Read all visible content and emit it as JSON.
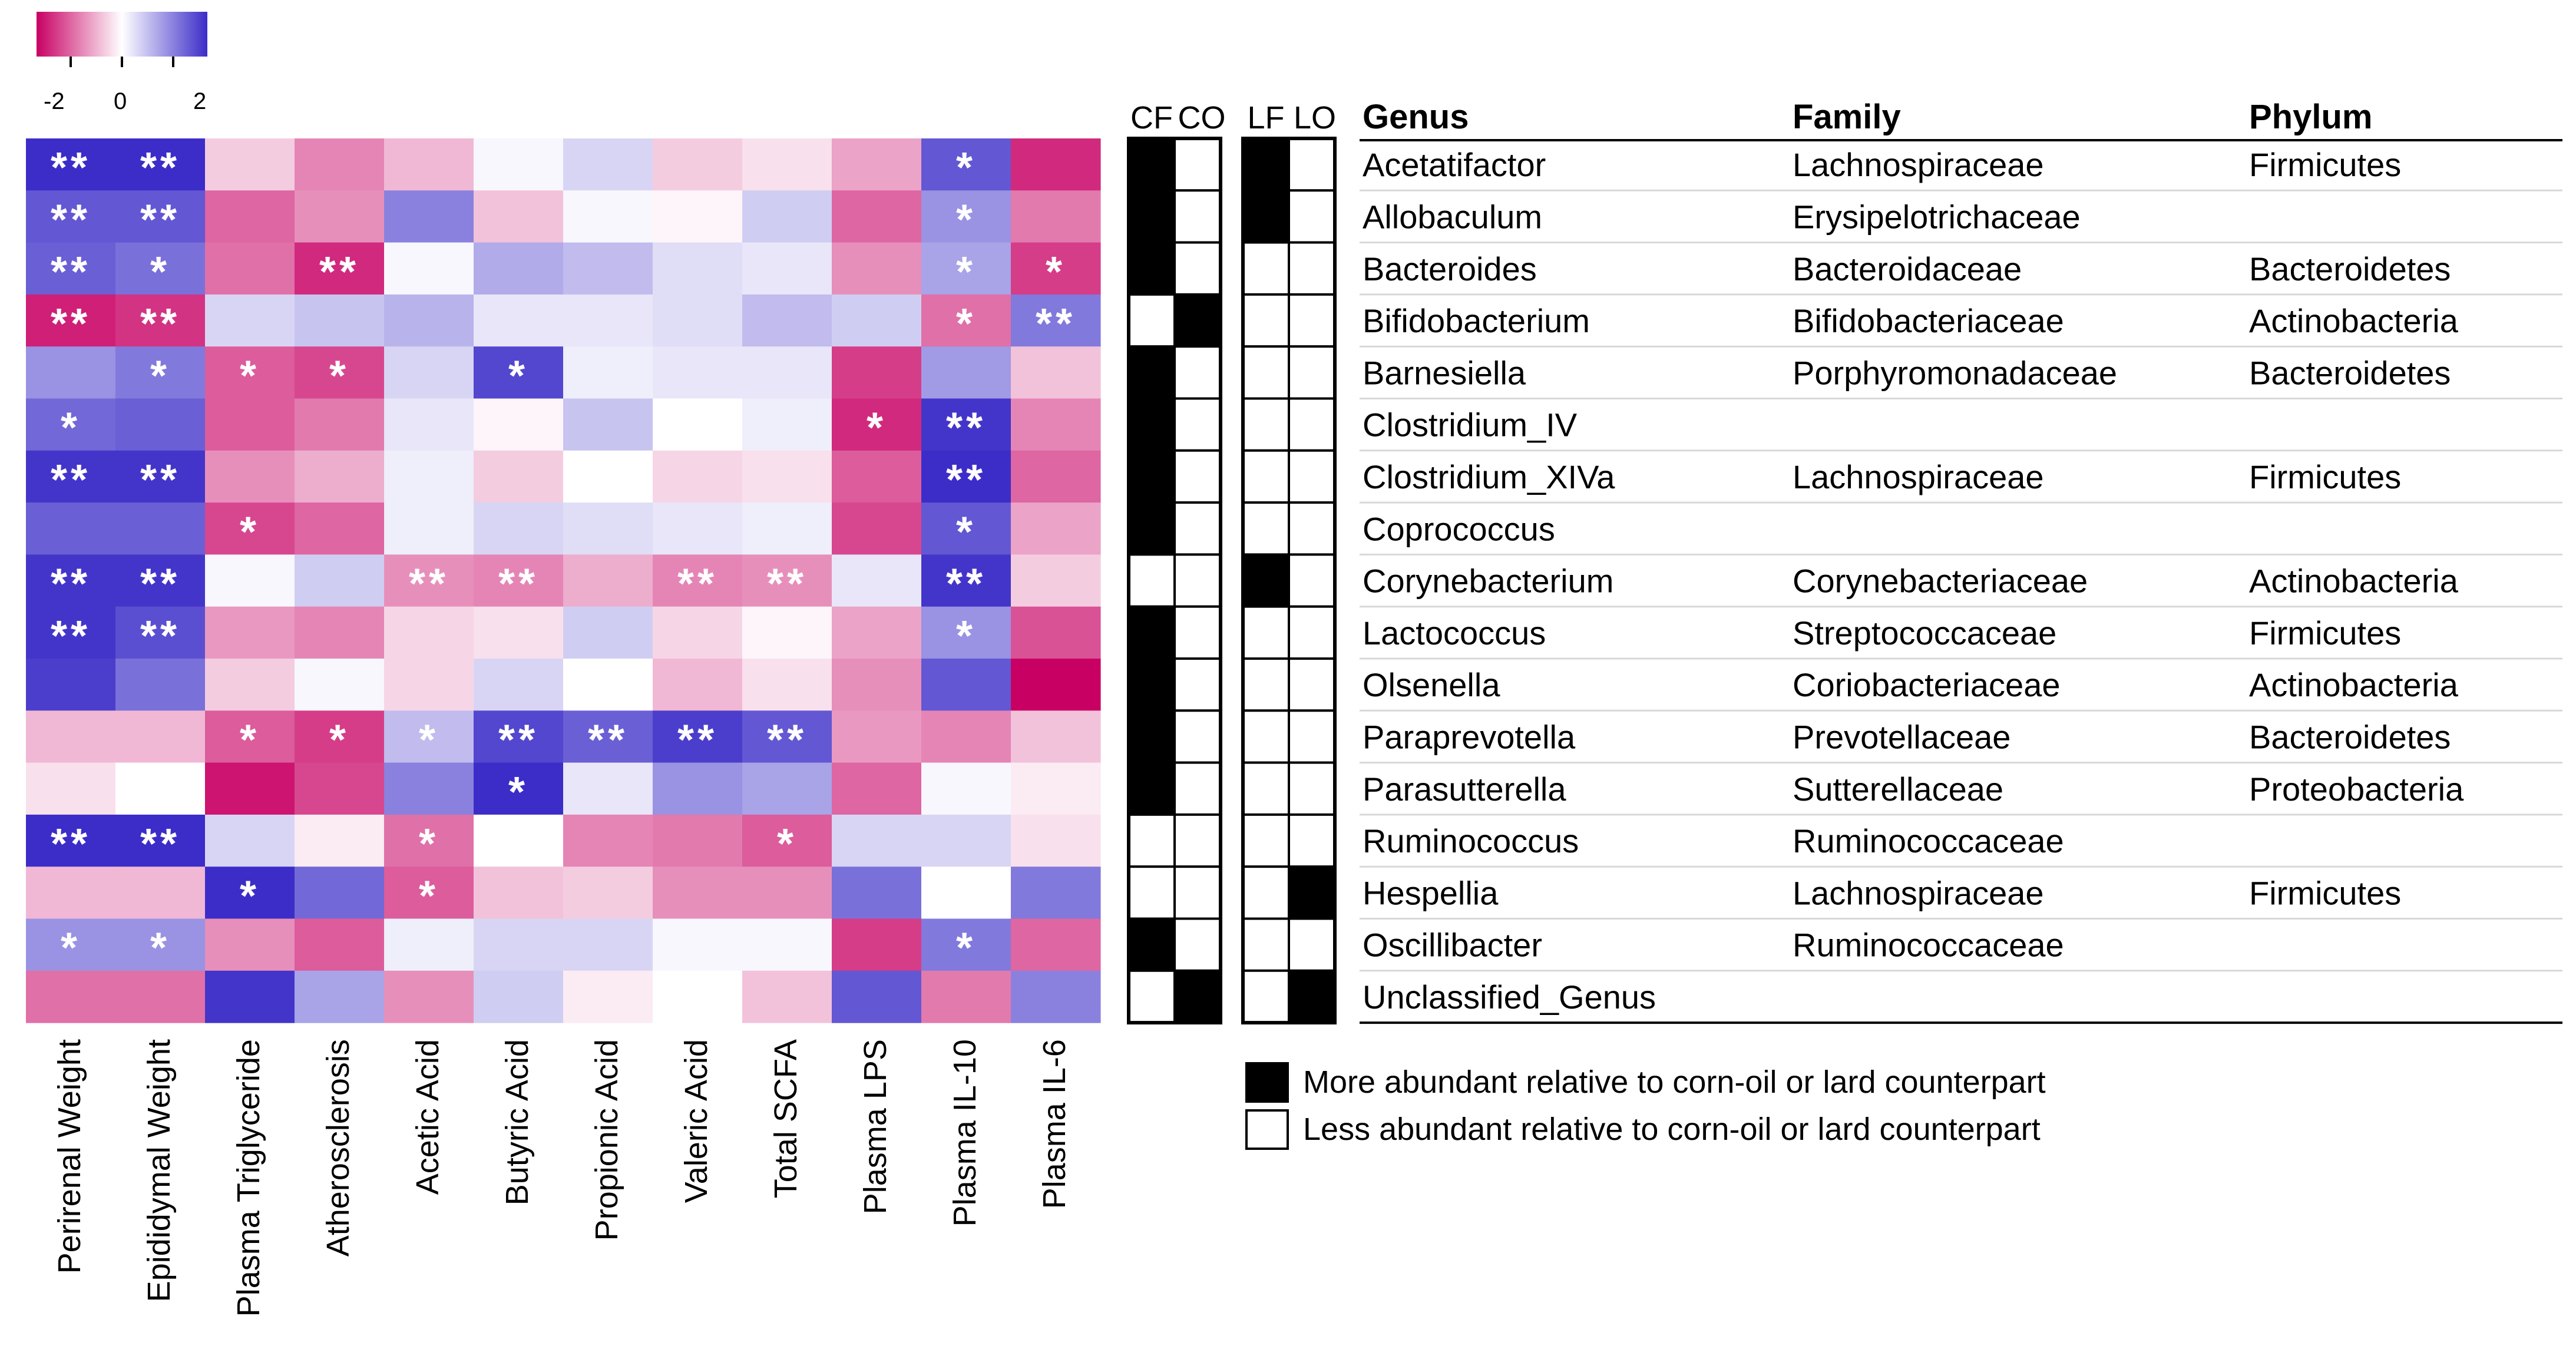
{
  "colors": {
    "low": "#c80064",
    "mid": "#ffffff",
    "high": "#3c2dc8",
    "present": "#000000",
    "absent": "#ffffff",
    "line": "#000000",
    "asterisk": "#ffffff"
  },
  "colorbar": {
    "ticks": [
      "-2",
      "0",
      "2"
    ],
    "range": [
      -2.5,
      2.5
    ]
  },
  "comparison_columns": {
    "group1": [
      "CF",
      "CO"
    ],
    "group2": [
      "LF",
      "LO"
    ]
  },
  "table_headers": {
    "genus": "Genus",
    "family": "Family",
    "phylum": "Phylum"
  },
  "taxa": [
    {
      "genus": "Acetatifactor",
      "family": "Lachnospiraceae",
      "phylum": "Firmicutes"
    },
    {
      "genus": "Allobaculum",
      "family": "Erysipelotrichaceae",
      "phylum": ""
    },
    {
      "genus": "Bacteroides",
      "family": "Bacteroidaceae",
      "phylum": "Bacteroidetes"
    },
    {
      "genus": "Bifidobacterium",
      "family": "Bifidobacteriaceae",
      "phylum": "Actinobacteria"
    },
    {
      "genus": "Barnesiella",
      "family": "Porphyromonadaceae",
      "phylum": "Bacteroidetes"
    },
    {
      "genus": "Clostridium_IV",
      "family": "",
      "phylum": ""
    },
    {
      "genus": "Clostridium_XIVa",
      "family": "Lachnospiraceae",
      "phylum": "Firmicutes"
    },
    {
      "genus": "Coprococcus",
      "family": "",
      "phylum": ""
    },
    {
      "genus": "Corynebacterium",
      "family": "Corynebacteriaceae",
      "phylum": "Actinobacteria"
    },
    {
      "genus": "Lactococcus",
      "family": "Streptococcaceae",
      "phylum": "Firmicutes"
    },
    {
      "genus": "Olsenella",
      "family": "Coriobacteriaceae",
      "phylum": "Actinobacteria"
    },
    {
      "genus": "Paraprevotella",
      "family": "Prevotellaceae",
      "phylum": "Bacteroidetes"
    },
    {
      "genus": "Parasutterella",
      "family": "Sutterellaceae",
      "phylum": "Proteobacteria"
    },
    {
      "genus": "Ruminococcus",
      "family": "Ruminococcaceae",
      "phylum": ""
    },
    {
      "genus": "Hespellia",
      "family": "Lachnospiraceae",
      "phylum": "Firmicutes"
    },
    {
      "genus": "Oscillibacter",
      "family": "Ruminococcaceae",
      "phylum": ""
    },
    {
      "genus": "Unclassified_Genus",
      "family": "",
      "phylum": ""
    }
  ],
  "abundance": {
    "CF_CO": [
      [
        1,
        0
      ],
      [
        1,
        0
      ],
      [
        1,
        0
      ],
      [
        0,
        1
      ],
      [
        1,
        0
      ],
      [
        1,
        0
      ],
      [
        1,
        0
      ],
      [
        1,
        0
      ],
      [
        0,
        0
      ],
      [
        1,
        0
      ],
      [
        1,
        0
      ],
      [
        1,
        0
      ],
      [
        1,
        0
      ],
      [
        0,
        0
      ],
      [
        0,
        0
      ],
      [
        1,
        0
      ],
      [
        0,
        1
      ]
    ],
    "LF_LO": [
      [
        1,
        0
      ],
      [
        1,
        0
      ],
      [
        0,
        0
      ],
      [
        0,
        0
      ],
      [
        0,
        0
      ],
      [
        0,
        0
      ],
      [
        0,
        0
      ],
      [
        0,
        0
      ],
      [
        1,
        0
      ],
      [
        0,
        0
      ],
      [
        0,
        0
      ],
      [
        0,
        0
      ],
      [
        0,
        0
      ],
      [
        0,
        0
      ],
      [
        0,
        1
      ],
      [
        0,
        0
      ],
      [
        0,
        1
      ]
    ]
  },
  "legend": {
    "more": "More abundant relative to corn-oil or lard counterpart",
    "less": "Less abundant relative to corn-oil or lard counterpart"
  },
  "chart_data": {
    "type": "heatmap",
    "title": "",
    "xlabel": "",
    "ylabel": "",
    "color_scale_range": [
      -2.5,
      2.5
    ],
    "columns": [
      "Perirenal Weight",
      "Epididymal Weight",
      "Plasma Triglyceride",
      "Atherosclerosis",
      "Acetic Acid",
      "Butyric Acid",
      "Propionic Acid",
      "Valeric Acid",
      "Total SCFA",
      "Plasma LPS",
      "Plasma IL-10",
      "Plasma IL-6"
    ],
    "rows": [
      "Acetatifactor",
      "Allobaculum",
      "Bacteroides",
      "Bifidobacterium",
      "Barnesiella",
      "Clostridium_IV",
      "Clostridium_XIVa",
      "Coprococcus",
      "Corynebacterium",
      "Lactococcus",
      "Olsenella",
      "Paraprevotella",
      "Parasutterella",
      "Ruminococcus",
      "Hespellia",
      "Oscillibacter",
      "Unclassified_Genus"
    ],
    "values": [
      [
        2.5,
        2.5,
        -0.5,
        -1.2,
        -0.7,
        0.1,
        0.5,
        -0.5,
        -0.3,
        -0.9,
        2.0,
        -2.1
      ],
      [
        2.0,
        2.0,
        -1.5,
        -1.1,
        1.5,
        -0.6,
        0.1,
        -0.1,
        0.6,
        -1.5,
        1.3,
        -1.3
      ],
      [
        1.9,
        1.7,
        -1.4,
        -2.1,
        0.1,
        1.0,
        0.8,
        0.4,
        0.3,
        -1.1,
        1.1,
        -1.9
      ],
      [
        -2.2,
        -2.0,
        0.5,
        0.7,
        0.9,
        0.3,
        0.3,
        0.4,
        0.8,
        0.6,
        -1.4,
        1.6
      ],
      [
        1.3,
        1.6,
        -1.6,
        -1.8,
        0.5,
        2.2,
        0.2,
        0.3,
        0.3,
        -1.9,
        1.2,
        -0.6
      ],
      [
        1.8,
        1.9,
        -1.6,
        -1.3,
        0.3,
        -0.1,
        0.7,
        0.0,
        0.2,
        -2.1,
        2.4,
        -1.2
      ],
      [
        2.4,
        2.4,
        -1.1,
        -0.8,
        0.2,
        -0.5,
        0.0,
        -0.4,
        -0.3,
        -1.6,
        2.5,
        -1.5
      ],
      [
        1.9,
        1.9,
        -1.8,
        -1.5,
        0.2,
        0.5,
        0.4,
        0.3,
        0.2,
        -1.8,
        2.0,
        -0.9
      ],
      [
        2.4,
        2.4,
        0.1,
        0.6,
        -1.1,
        -1.2,
        -0.8,
        -1.2,
        -1.1,
        0.3,
        2.4,
        -0.5
      ],
      [
        2.4,
        2.1,
        -1.0,
        -1.2,
        -0.4,
        -0.3,
        0.6,
        -0.4,
        -0.1,
        -0.9,
        1.3,
        -1.7
      ],
      [
        2.3,
        1.7,
        -0.5,
        0.1,
        -0.4,
        0.5,
        0.0,
        -0.7,
        -0.3,
        -1.1,
        2.0,
        -2.5
      ],
      [
        -0.7,
        -0.7,
        -1.6,
        -1.9,
        0.8,
        2.2,
        1.9,
        2.3,
        2.0,
        -1.0,
        -1.2,
        -0.6
      ],
      [
        -0.3,
        0.0,
        -2.3,
        -1.8,
        1.5,
        2.8,
        0.3,
        1.3,
        1.1,
        -1.5,
        0.1,
        -0.2
      ],
      [
        2.8,
        2.8,
        0.5,
        -0.2,
        -1.4,
        0.0,
        -1.2,
        -1.3,
        -1.6,
        0.5,
        0.5,
        -0.3
      ],
      [
        -0.7,
        -0.7,
        2.5,
        1.8,
        -1.6,
        -0.6,
        -0.5,
        -1.1,
        -1.1,
        1.7,
        0.0,
        1.6
      ],
      [
        1.3,
        1.3,
        -1.1,
        -1.6,
        0.2,
        0.5,
        0.5,
        0.1,
        0.1,
        -1.9,
        1.6,
        -1.5
      ],
      [
        -1.4,
        -1.4,
        2.4,
        1.1,
        -1.1,
        0.6,
        -0.2,
        0.0,
        -0.6,
        2.0,
        -1.3,
        1.5
      ]
    ],
    "significance": [
      [
        "**",
        "**",
        "",
        "",
        "",
        "",
        "",
        "",
        "",
        "",
        "*",
        ""
      ],
      [
        "**",
        "**",
        "",
        "",
        "",
        "",
        "",
        "",
        "",
        "",
        "*",
        ""
      ],
      [
        "**",
        "*",
        "",
        "**",
        "",
        "",
        "",
        "",
        "",
        "",
        "*",
        "*"
      ],
      [
        "**",
        "**",
        "",
        "",
        "",
        "",
        "",
        "",
        "",
        "",
        "*",
        "**"
      ],
      [
        "",
        "*",
        "*",
        "*",
        "",
        "*",
        "",
        "",
        "",
        "",
        "",
        ""
      ],
      [
        "*",
        "",
        "",
        "",
        "",
        "",
        "",
        "",
        "",
        "*",
        "**",
        ""
      ],
      [
        "**",
        "**",
        "",
        "",
        "",
        "",
        "",
        "",
        "",
        "",
        "**",
        ""
      ],
      [
        "",
        "",
        "*",
        "",
        "",
        "",
        "",
        "",
        "",
        "",
        "*",
        ""
      ],
      [
        "**",
        "**",
        "",
        "",
        "**",
        "**",
        "",
        "**",
        "**",
        "",
        "**",
        ""
      ],
      [
        "**",
        "**",
        "",
        "",
        "",
        "",
        "",
        "",
        "",
        "",
        "*",
        ""
      ],
      [
        "",
        "",
        "",
        "",
        "",
        "",
        "",
        "",
        "",
        "",
        "",
        ""
      ],
      [
        "",
        "",
        "*",
        "*",
        "*",
        "**",
        "**",
        "**",
        "**",
        "",
        "",
        ""
      ],
      [
        "",
        "",
        "",
        "",
        "",
        "*",
        "",
        "",
        "",
        "",
        "",
        ""
      ],
      [
        "**",
        "**",
        "",
        "",
        "*",
        "",
        "",
        "",
        "*",
        "",
        "",
        ""
      ],
      [
        "",
        "",
        "*",
        "",
        "*",
        "",
        "",
        "",
        "",
        "",
        "",
        ""
      ],
      [
        "*",
        "*",
        "",
        "",
        "",
        "",
        "",
        "",
        "",
        "",
        "*",
        ""
      ],
      [
        "",
        "",
        "",
        "",
        "",
        "",
        "",
        "",
        "",
        "",
        "",
        ""
      ]
    ]
  }
}
